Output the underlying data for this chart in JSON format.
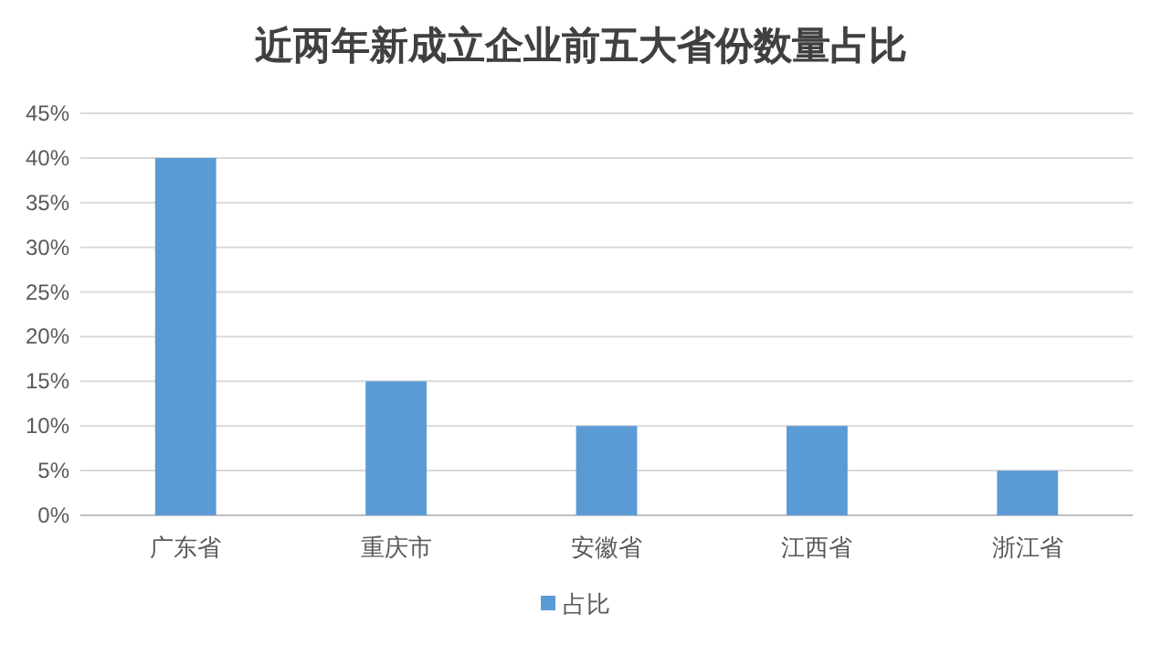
{
  "chart_data": {
    "type": "bar",
    "title": "近两年新成立企业前五大省份数量占比",
    "categories": [
      "广东省",
      "重庆市",
      "安徽省",
      "江西省",
      "浙江省"
    ],
    "series": [
      {
        "name": "占比",
        "color": "#5b9bd5",
        "values": [
          40,
          15,
          10,
          10,
          5
        ]
      }
    ],
    "ylim": [
      0,
      45
    ],
    "yticks": [
      {
        "value": 0,
        "label": "0%"
      },
      {
        "value": 5,
        "label": "5%"
      },
      {
        "value": 10,
        "label": "10%"
      },
      {
        "value": 15,
        "label": "15%"
      },
      {
        "value": 20,
        "label": "20%"
      },
      {
        "value": 25,
        "label": "25%"
      },
      {
        "value": 30,
        "label": "30%"
      },
      {
        "value": 35,
        "label": "35%"
      },
      {
        "value": 40,
        "label": "40%"
      },
      {
        "value": 45,
        "label": "45%"
      }
    ],
    "grid": "y",
    "legend": "bottom"
  }
}
